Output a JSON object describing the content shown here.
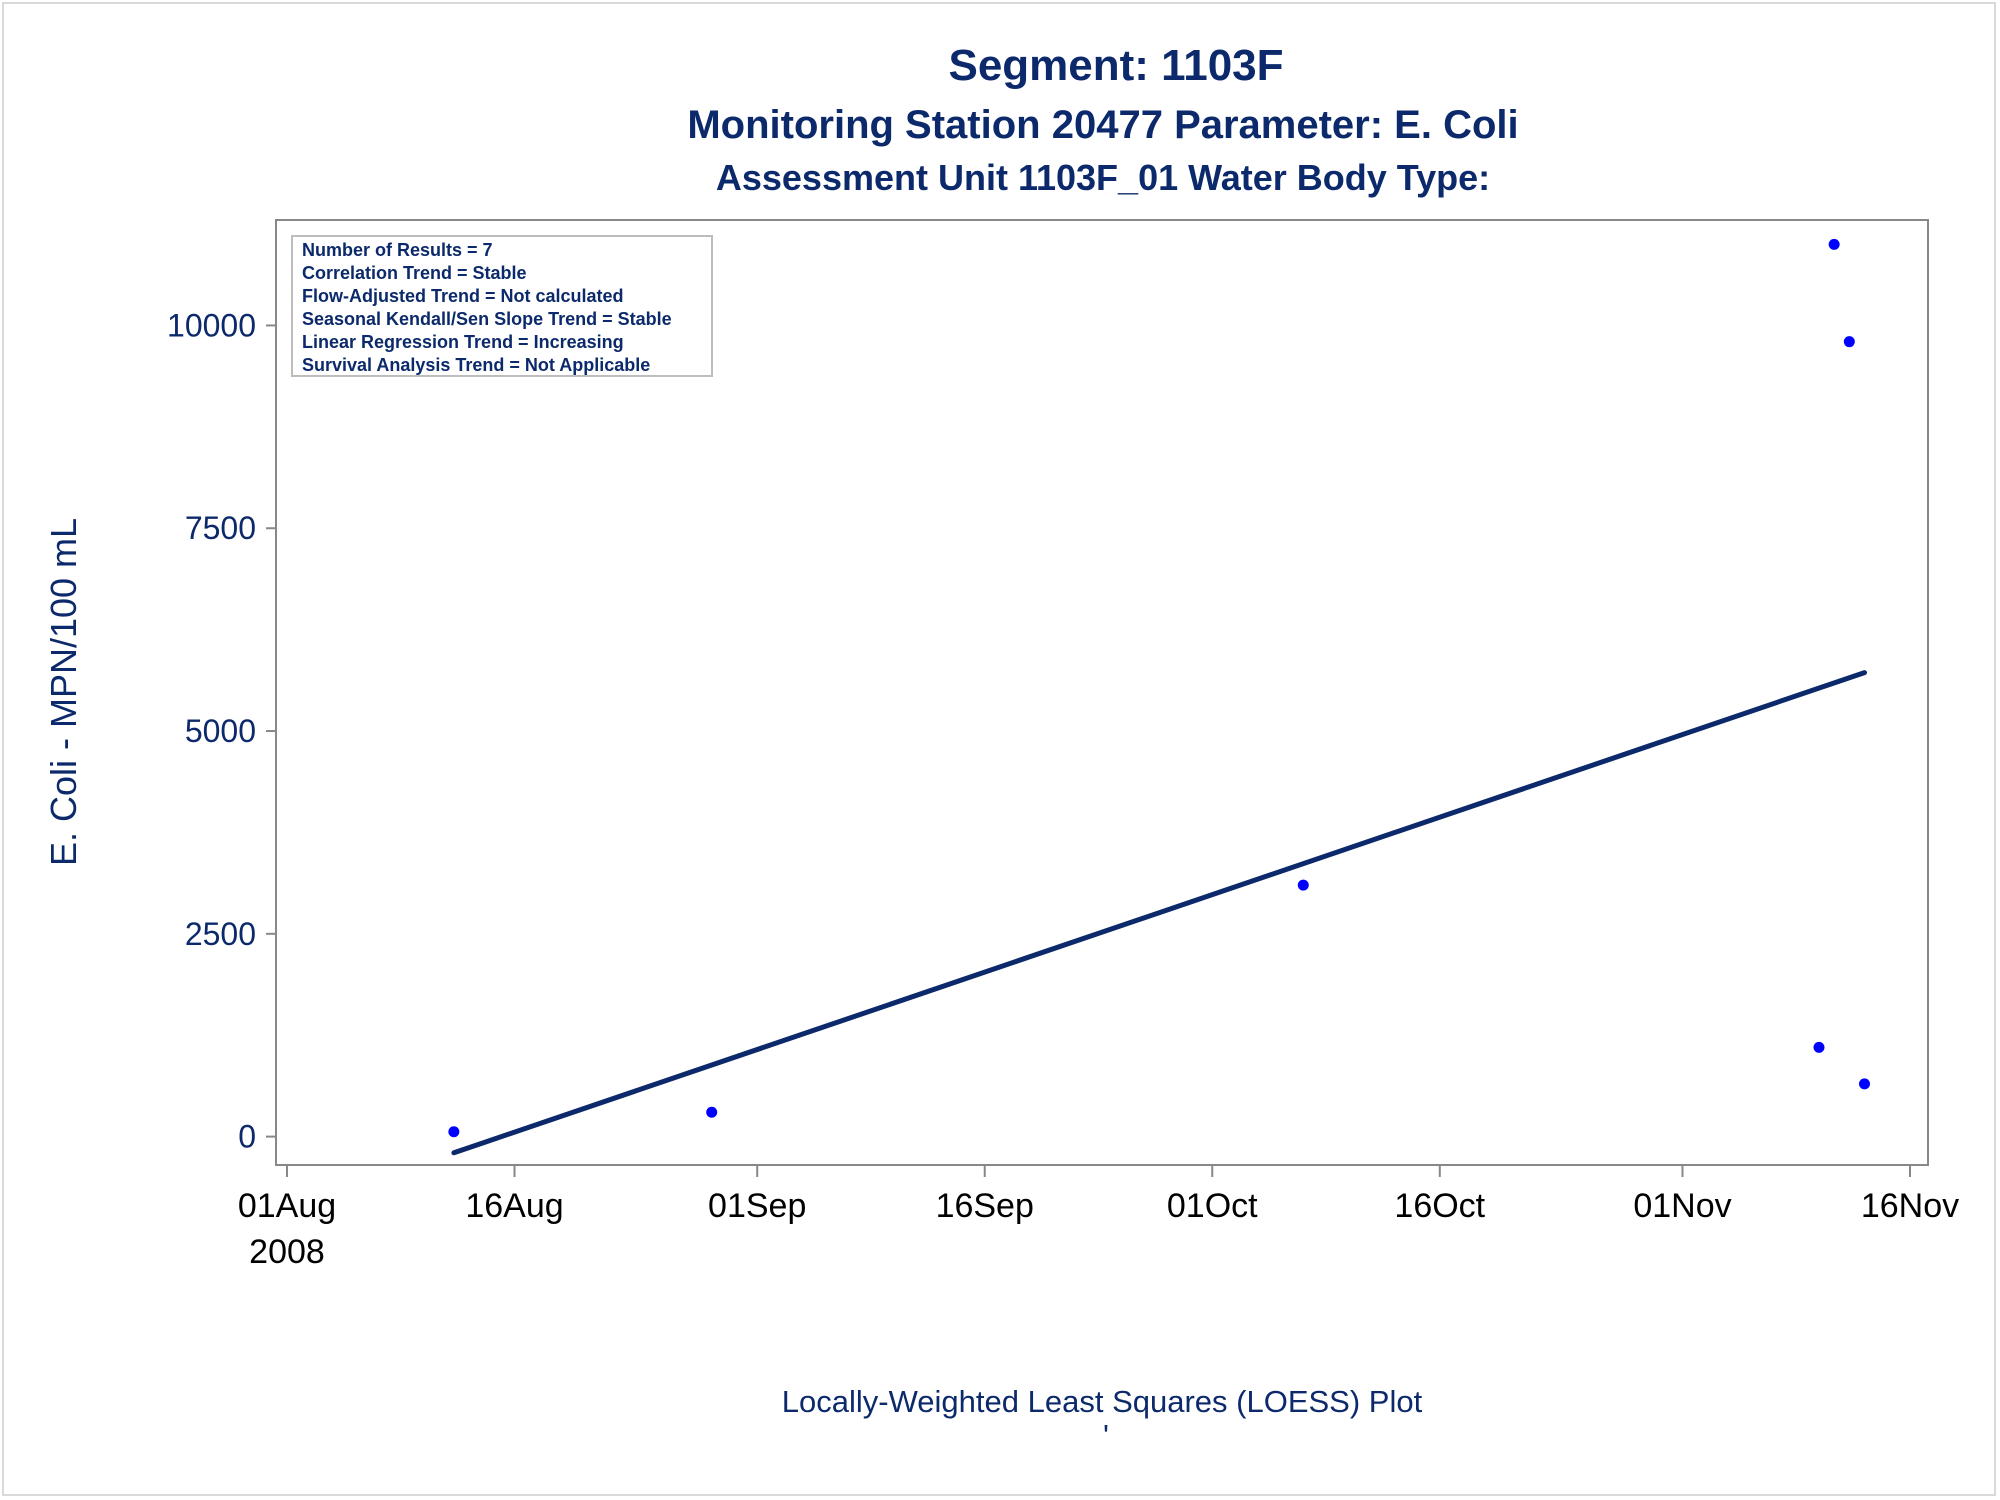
{
  "titles": {
    "line1": "Segment: 1103F",
    "line2": "Monitoring Station 20477 Parameter: E. Coli",
    "line3": "Assessment Unit 1103F_01   Water Body Type:"
  },
  "stats_box": {
    "lines": [
      "Number of Results = 7",
      "Correlation Trend = Stable",
      "Flow-Adjusted Trend = Not calculated",
      "Seasonal Kendall/Sen Slope Trend = Stable",
      "Linear Regression Trend = Increasing",
      "Survival Analysis Trend = Not Applicable"
    ]
  },
  "footnote": {
    "text": "Locally-Weighted Least Squares (LOESS) Plot",
    "mark": "'"
  },
  "colors": {
    "title": "#0c2a6b",
    "axis": "#888888",
    "points": "#0000ff",
    "line": "#0c2a6b"
  },
  "chart_data": {
    "type": "scatter",
    "xlabel": "",
    "ylabel": "E. Coli - MPN/100 mL",
    "x_axis": {
      "type": "date",
      "range": [
        "2008-08-01",
        "2008-11-16"
      ],
      "ticks": [
        {
          "date": "2008-08-01",
          "label": "01Aug",
          "sublabel": "2008"
        },
        {
          "date": "2008-08-16",
          "label": "16Aug"
        },
        {
          "date": "2008-09-01",
          "label": "01Sep"
        },
        {
          "date": "2008-09-16",
          "label": "16Sep"
        },
        {
          "date": "2008-10-01",
          "label": "01Oct"
        },
        {
          "date": "2008-10-16",
          "label": "16Oct"
        },
        {
          "date": "2008-11-01",
          "label": "01Nov"
        },
        {
          "date": "2008-11-16",
          "label": "16Nov"
        }
      ]
    },
    "y_axis": {
      "range": [
        -350,
        11300
      ],
      "ticks": [
        0,
        2500,
        5000,
        7500,
        10000
      ]
    },
    "grid": false,
    "legend": "top-left inset text box",
    "series": [
      {
        "kind": "points",
        "points": [
          {
            "x": "2008-08-12",
            "y": 60
          },
          {
            "x": "2008-08-29",
            "y": 300
          },
          {
            "x": "2008-10-07",
            "y": 3100
          },
          {
            "x": "2008-11-10",
            "y": 1100
          },
          {
            "x": "2008-11-11",
            "y": 11000
          },
          {
            "x": "2008-11-12",
            "y": 9800
          },
          {
            "x": "2008-11-13",
            "y": 650
          }
        ]
      },
      {
        "kind": "line",
        "points": [
          {
            "x": "2008-08-12",
            "y": -200
          },
          {
            "x": "2008-11-13",
            "y": 5720
          }
        ]
      }
    ]
  }
}
